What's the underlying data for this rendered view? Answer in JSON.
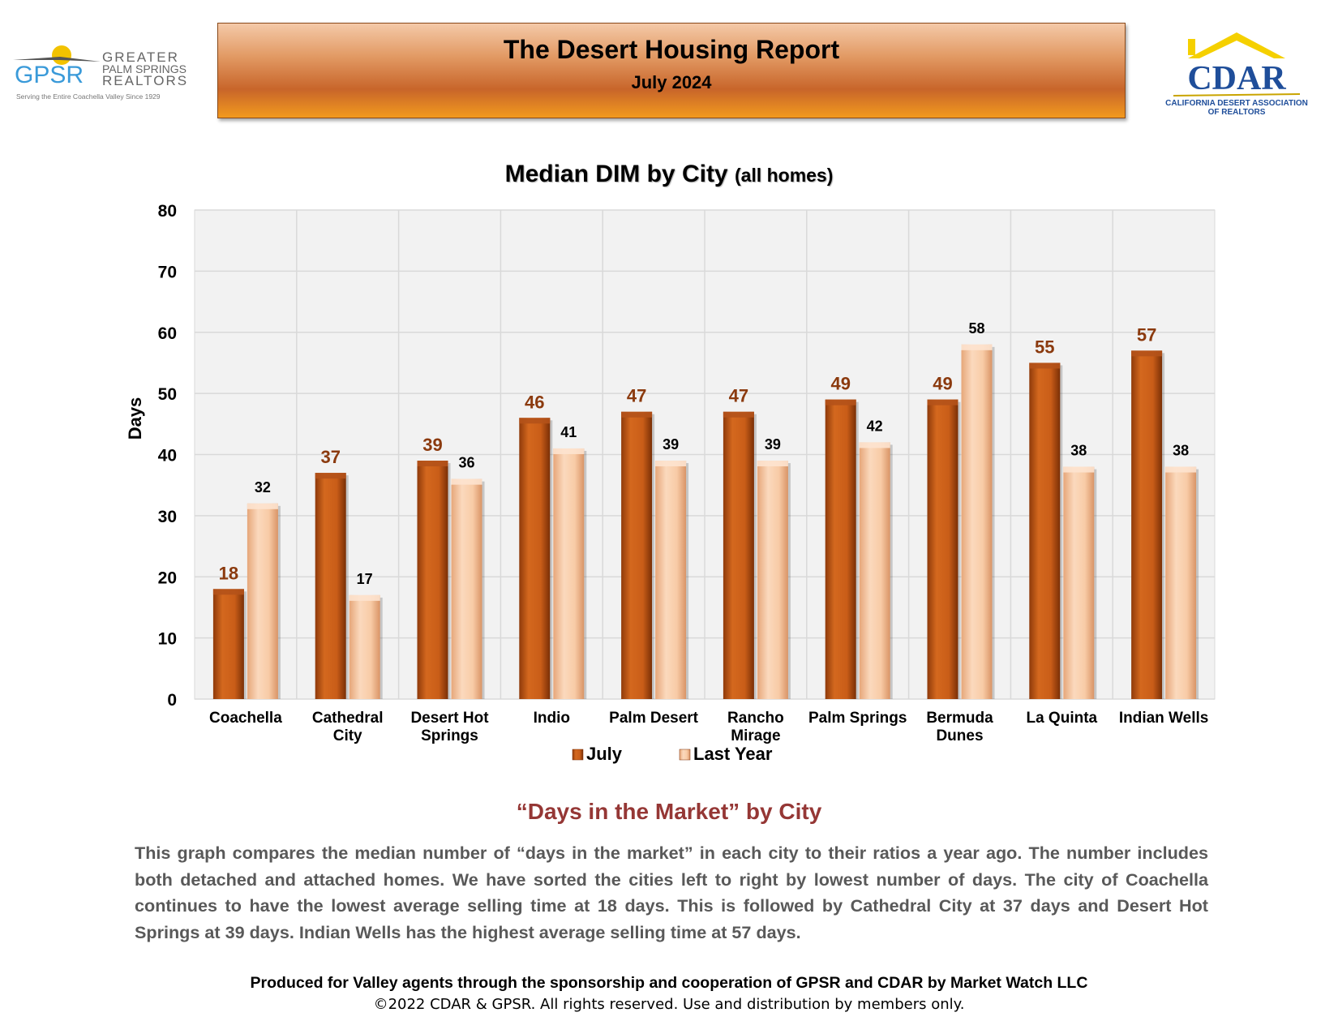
{
  "header": {
    "title": "The Desert Housing Report",
    "subtitle": "July 2024"
  },
  "logos": {
    "gpsr": {
      "mark": "GPSR",
      "line1": "GREATER",
      "line2": "PALM SPRINGS",
      "line3": "REALTORS",
      "tagline": "Serving the Entire Coachella Valley Since 1929"
    },
    "cdar": {
      "mark": "CDAR",
      "line1": "CALIFORNIA DESERT ASSOCIATION",
      "line2": "OF REALTORS"
    }
  },
  "chart_data": {
    "type": "bar",
    "title": "Median DIM by City",
    "title_suffix": "(all homes)",
    "xlabel": "",
    "ylabel": "Days",
    "ylim": [
      0,
      80
    ],
    "yticks": [
      0,
      10,
      20,
      30,
      40,
      50,
      60,
      70,
      80
    ],
    "grid": true,
    "legend_position": "bottom",
    "categories": [
      [
        "Coachella"
      ],
      [
        "Cathedral",
        "City"
      ],
      [
        "Desert Hot",
        "Springs"
      ],
      [
        "Indio"
      ],
      [
        "Palm Desert"
      ],
      [
        "Rancho",
        "Mirage"
      ],
      [
        "Palm Springs"
      ],
      [
        "Bermuda",
        "Dunes"
      ],
      [
        "La Quinta"
      ],
      [
        "Indian Wells"
      ]
    ],
    "series": [
      {
        "name": "July",
        "color": "#c65a16",
        "label_color": "#8b3a0e",
        "values": [
          18,
          37,
          39,
          46,
          47,
          47,
          49,
          49,
          55,
          57
        ]
      },
      {
        "name": "Last Year",
        "color": "#f8cba6",
        "label_color": "#000000",
        "values": [
          32,
          17,
          36,
          41,
          39,
          39,
          42,
          58,
          38,
          38
        ]
      }
    ]
  },
  "section": {
    "heading": "“Days in the Market” by City",
    "description": "This graph compares the median number of “days in the market” in each city to their ratios a year ago. The number includes both detached and attached homes. We have sorted the cities left to right by lowest number of days. The city of Coachella continues to have the lowest average selling time at 18 days. This is followed by Cathedral City at 37 days and Desert Hot Springs at 39 days. Indian Wells has the highest average selling time at 57 days."
  },
  "footer": {
    "credit": "Produced for Valley agents through the sponsorship and cooperation of GPSR and CDAR by Market Watch LLC",
    "copyright": "©2022 CDAR & GPSR.  All rights reserved.  Use and distribution by members only."
  }
}
